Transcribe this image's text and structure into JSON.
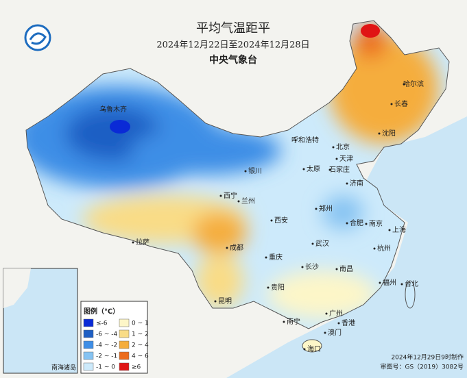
{
  "header": {
    "title": "平均气温距平",
    "date_range": "2024年12月22日至2024年12月28日",
    "issuer": "中央气象台"
  },
  "legend": {
    "title": "图例（℃）",
    "items": [
      {
        "label": "≤-6",
        "color": "#0a2ad6"
      },
      {
        "label": "-6 ~ -4",
        "color": "#1f5fc4"
      },
      {
        "label": "-4 ~ -2",
        "color": "#3e8ee6"
      },
      {
        "label": "-2 ~ -1",
        "color": "#86c3f2"
      },
      {
        "label": "-1 ~ 0",
        "color": "#cdeafb"
      },
      {
        "label": "0 ~ 1",
        "color": "#fdf6c8"
      },
      {
        "label": "1 ~ 2",
        "color": "#f9dc86"
      },
      {
        "label": "2 ~ 4",
        "color": "#f5ad3c"
      },
      {
        "label": "4 ~ 6",
        "color": "#ec6c1c"
      },
      {
        "label": "≥6",
        "color": "#e01414"
      }
    ]
  },
  "cities": [
    "乌鲁木齐",
    "呼和浩特",
    "北京",
    "天津",
    "哈尔滨",
    "长春",
    "沈阳",
    "石家庄",
    "太原",
    "济南",
    "银川",
    "西宁",
    "兰州",
    "郑州",
    "西安",
    "合肥",
    "南京",
    "上海",
    "拉萨",
    "成都",
    "重庆",
    "武汉",
    "杭州",
    "长沙",
    "南昌",
    "贵阳",
    "福州",
    "台北",
    "昆明",
    "南宁",
    "广州",
    "香港",
    "澳门",
    "海口"
  ],
  "inset": {
    "label": "南海诸岛"
  },
  "footer": [
    "2024年12月29日9时制作",
    "审图号：GS（2019）3082号"
  ]
}
